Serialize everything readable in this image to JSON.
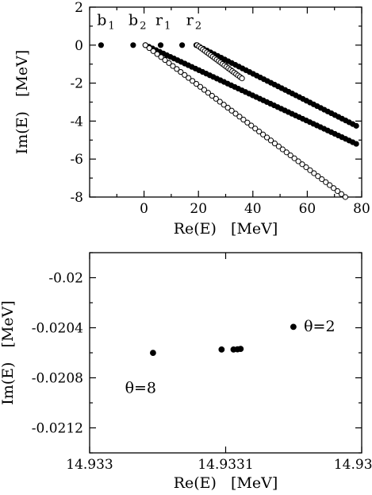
{
  "chart_data": [
    {
      "type": "scatter",
      "xlabel": "Re(E)   [MeV]",
      "ylabel": "Im(E)   [MeV]",
      "xlim": [
        -20,
        80
      ],
      "ylim": [
        -8,
        2
      ],
      "xticks": [
        0,
        20,
        40,
        60,
        80
      ],
      "yticks": [
        -8,
        -6,
        -4,
        -2,
        0,
        2
      ],
      "annotations": [
        {
          "text": "b",
          "sub": "1",
          "x": -17.3,
          "y": 1.05
        },
        {
          "text": "b",
          "sub": "2",
          "x": -5.7,
          "y": 1.05
        },
        {
          "text": "r",
          "sub": "1",
          "x": 4.2,
          "y": 1.05
        },
        {
          "text": "r",
          "sub": "2",
          "x": 15.5,
          "y": 1.05
        }
      ],
      "series": [
        {
          "marker": "filled",
          "x": [
            -15.8,
            -4.0,
            6.1,
            14.0
          ],
          "y": [
            0.0,
            0.0,
            0.0,
            0.0
          ]
        },
        {
          "marker": "filled",
          "x": [
            0.5,
            78.0
          ],
          "y": [
            0.0,
            -5.2
          ],
          "n": 60
        },
        {
          "marker": "filled",
          "x": [
            19.2,
            78.0
          ],
          "y": [
            0.0,
            -4.25
          ],
          "n": 46
        },
        {
          "marker": "open",
          "x": [
            0.5,
            74.0
          ],
          "y": [
            0.0,
            -8.0
          ],
          "n": 52
        },
        {
          "marker": "open",
          "x": [
            19.5,
            36.0
          ],
          "y": [
            0.0,
            -1.75
          ],
          "n": 24
        }
      ]
    },
    {
      "type": "scatter",
      "xlabel": "Re(E)   [MeV]",
      "ylabel": "Im(E)   [MeV]",
      "xlim": [
        14.933,
        14.9332
      ],
      "ylim": [
        -0.0214,
        -0.0198
      ],
      "xticks": [
        14.933,
        14.9331,
        14.9332
      ],
      "xticklabels": [
        "14.933",
        "14.9331",
        "14.9332"
      ],
      "yticks": [
        -0.0212,
        -0.0208,
        -0.0204,
        -0.02
      ],
      "yticklabels": [
        "-0.0212",
        "-0.0208",
        "-0.0204",
        "-0.02"
      ],
      "annotations": [
        {
          "text": "θ=8",
          "x": 14.933026,
          "y": -0.02092
        },
        {
          "text": "θ=2",
          "x": 14.9331575,
          "y": -0.02043
        }
      ],
      "series": [
        {
          "marker": "filled",
          "x": [
            14.9330466,
            14.933097,
            14.9331058,
            14.9331087,
            14.933111,
            14.9331498
          ],
          "y": [
            -0.020601,
            -0.020574,
            -0.020574,
            -0.020572,
            -0.020569,
            -0.020393
          ]
        }
      ]
    }
  ]
}
